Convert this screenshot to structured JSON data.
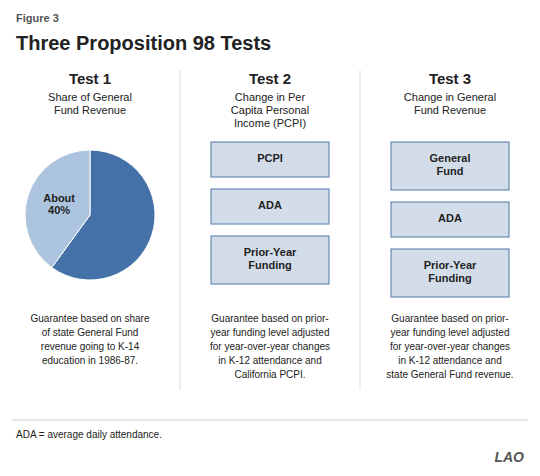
{
  "chart_data": {
    "type": "pie",
    "title": "Three Proposition 98 Tests",
    "subtitle": "Figure 3",
    "values": [
      60,
      40
    ],
    "colors": [
      "#4472a8",
      "#adc4de"
    ],
    "data_labels": true,
    "value_labels": [
      null,
      "About\n40%"
    ],
    "annotations": [
      "Test 1",
      "Share of General\nFund Revenue",
      "Guarantee based on share\nof state General Fund\nrevenue going to K-14\neducation in 1986-87.",
      "Test 2",
      "Change in Per\nCapita Personal\nIncome (PCPI)",
      "PCPI",
      "ADA",
      "Prior-Year\nFunding",
      "Guarantee based on prior-\nyear funding level adjusted\nfor year-over-year changes\nin K-12 attendance and\nCalifornia PCPI.",
      "Test 3",
      "Change in General\nFund Revenue",
      "General\nFund",
      "ADA",
      "Prior-Year\nFunding",
      "Guarantee based on prior-\nyear funding level adjusted\nfor year-over-year changes\nin K-12 attendance and\nstate General Fund revenue.",
      "ADA = average daily attendance.",
      "LAO"
    ]
  }
}
